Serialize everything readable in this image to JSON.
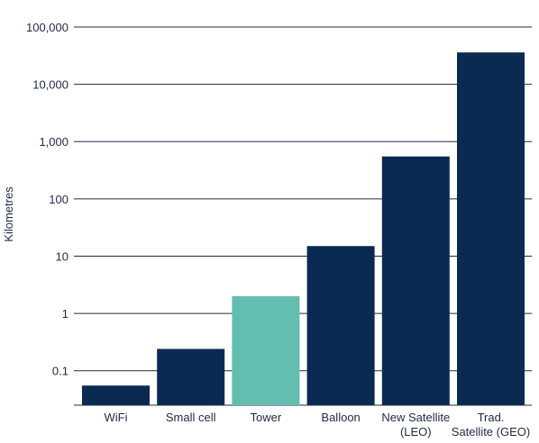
{
  "chart_data": {
    "type": "bar",
    "ylabel": "Kilometres",
    "yscale": "log",
    "ylim": [
      0.025,
      100000
    ],
    "yticks": [
      0.1,
      1,
      10,
      100,
      1000,
      10000,
      100000
    ],
    "ytick_labels": [
      "0.1",
      "1",
      "10",
      "100",
      "1,000",
      "10,000",
      "100,000"
    ],
    "categories": [
      [
        "WiFi"
      ],
      [
        "Small cell"
      ],
      [
        "Tower"
      ],
      [
        "Balloon"
      ],
      [
        "New Satellite",
        "(LEO)"
      ],
      [
        "Trad.",
        "Satellite (GEO)"
      ]
    ],
    "values": [
      0.055,
      0.24,
      2,
      15,
      550,
      36000
    ],
    "colors": [
      "#0b2a52",
      "#0b2a52",
      "#62bfb0",
      "#0b2a52",
      "#0b2a52",
      "#0b2a52"
    ],
    "grid": true
  }
}
